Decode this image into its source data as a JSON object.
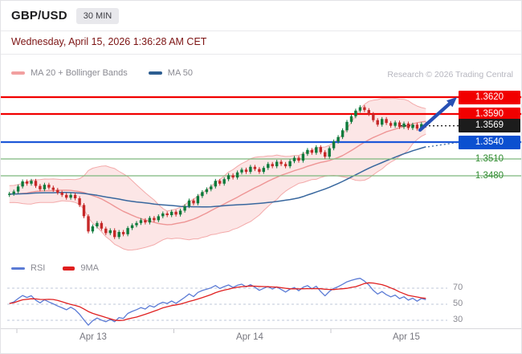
{
  "header": {
    "symbol": "GBP/USD",
    "timeframe": "30 MIN",
    "datetime": "Wednesday, April 15, 2026 1:36:28 AM CET",
    "credit": "Research © 2026 Trading Central"
  },
  "legend_main": [
    {
      "label": "MA 20 + Bollinger Bands",
      "color": "#f2a0a0"
    },
    {
      "label": "MA 50",
      "color": "#2d5e91"
    }
  ],
  "legend_rsi": [
    {
      "label": "RSI",
      "color": "#5b7bd5"
    },
    {
      "label": "9MA",
      "color": "#e01f1f"
    }
  ],
  "levels": [
    {
      "value": "1.3620",
      "role": "resistance",
      "line_color": "#f10000",
      "badge_bg": "#f10000",
      "line_width": 2.2
    },
    {
      "value": "1.3590",
      "role": "resistance",
      "line_color": "#f10000",
      "badge_bg": "#f10000",
      "line_width": 2.2
    },
    {
      "value": "1.3569",
      "role": "last-price",
      "line_color": "#222222",
      "badge_bg": "#1c1c1c",
      "line_style": "dotted",
      "line_width": 1.4
    },
    {
      "value": "1.3540",
      "role": "pivot",
      "line_color": "#1e58d8",
      "badge_bg": "#0b50d0",
      "line_width": 2.2
    },
    {
      "value": "1.3510",
      "role": "support",
      "line_color": "#7cb87c",
      "badge_bg": "none",
      "text_color": "#2e8b2e",
      "line_width": 1.3
    },
    {
      "value": "1.3480",
      "role": "support",
      "line_color": "#7cb87c",
      "badge_bg": "none",
      "text_color": "#2e8b2e",
      "line_width": 1.3
    }
  ],
  "rsi_ticks": [
    "70",
    "50",
    "30"
  ],
  "x_axis": [
    "Apr 13",
    "Apr 14",
    "Apr 15"
  ],
  "chart_data": {
    "type": "candlestick",
    "title": "GBP/USD 30 MIN intraday candlestick chart with MA 20 + Bollinger Bands, MA 50, horizontal pivot/support/resistance levels and RSI sub-panel",
    "interval": "30 MIN",
    "x_tick_labels": [
      "Apr 13",
      "Apr 14",
      "Apr 15"
    ],
    "y_range": [
      1.336,
      1.364
    ],
    "last_price": 1.3569,
    "levels": {
      "resistances": [
        1.362,
        1.359
      ],
      "pivot": 1.354,
      "supports": [
        1.351,
        1.348
      ],
      "last": 1.3569
    },
    "analyst_view": "blue arrow pointing up from last price toward 1.3620 resistance",
    "indicators_main": [
      "MA 20 + Bollinger Bands",
      "MA 50"
    ],
    "closes": [
      1.3448,
      1.3452,
      1.3461,
      1.347,
      1.3466,
      1.3471,
      1.3462,
      1.3456,
      1.3464,
      1.3459,
      1.3455,
      1.345,
      1.3446,
      1.3441,
      1.3446,
      1.344,
      1.3428,
      1.3408,
      1.3381,
      1.339,
      1.3396,
      1.3386,
      1.3378,
      1.3383,
      1.3371,
      1.338,
      1.3376,
      1.3387,
      1.3392,
      1.3396,
      1.3401,
      1.3397,
      1.3405,
      1.3401,
      1.3408,
      1.3413,
      1.341,
      1.3416,
      1.3411,
      1.3418,
      1.3426,
      1.3436,
      1.3431,
      1.3444,
      1.3451,
      1.3456,
      1.3461,
      1.3471,
      1.3466,
      1.3474,
      1.3481,
      1.3477,
      1.3486,
      1.3491,
      1.3487,
      1.3496,
      1.3492,
      1.3487,
      1.3494,
      1.3501,
      1.3497,
      1.3505,
      1.3501,
      1.3497,
      1.3506,
      1.3512,
      1.3507,
      1.3519,
      1.3526,
      1.3521,
      1.3531,
      1.3522,
      1.3514,
      1.3529,
      1.3541,
      1.3549,
      1.3561,
      1.3576,
      1.3586,
      1.3596,
      1.3602,
      1.3597,
      1.359,
      1.3579,
      1.3571,
      1.3581,
      1.3574,
      1.3569,
      1.3575,
      1.3567,
      1.3573,
      1.3565,
      1.3571,
      1.3564,
      1.3572,
      1.3569
    ],
    "rsi_panel": {
      "indicators": [
        "RSI",
        "9MA"
      ],
      "gridlines": [
        70,
        50,
        30
      ],
      "range": [
        0,
        100
      ]
    }
  }
}
